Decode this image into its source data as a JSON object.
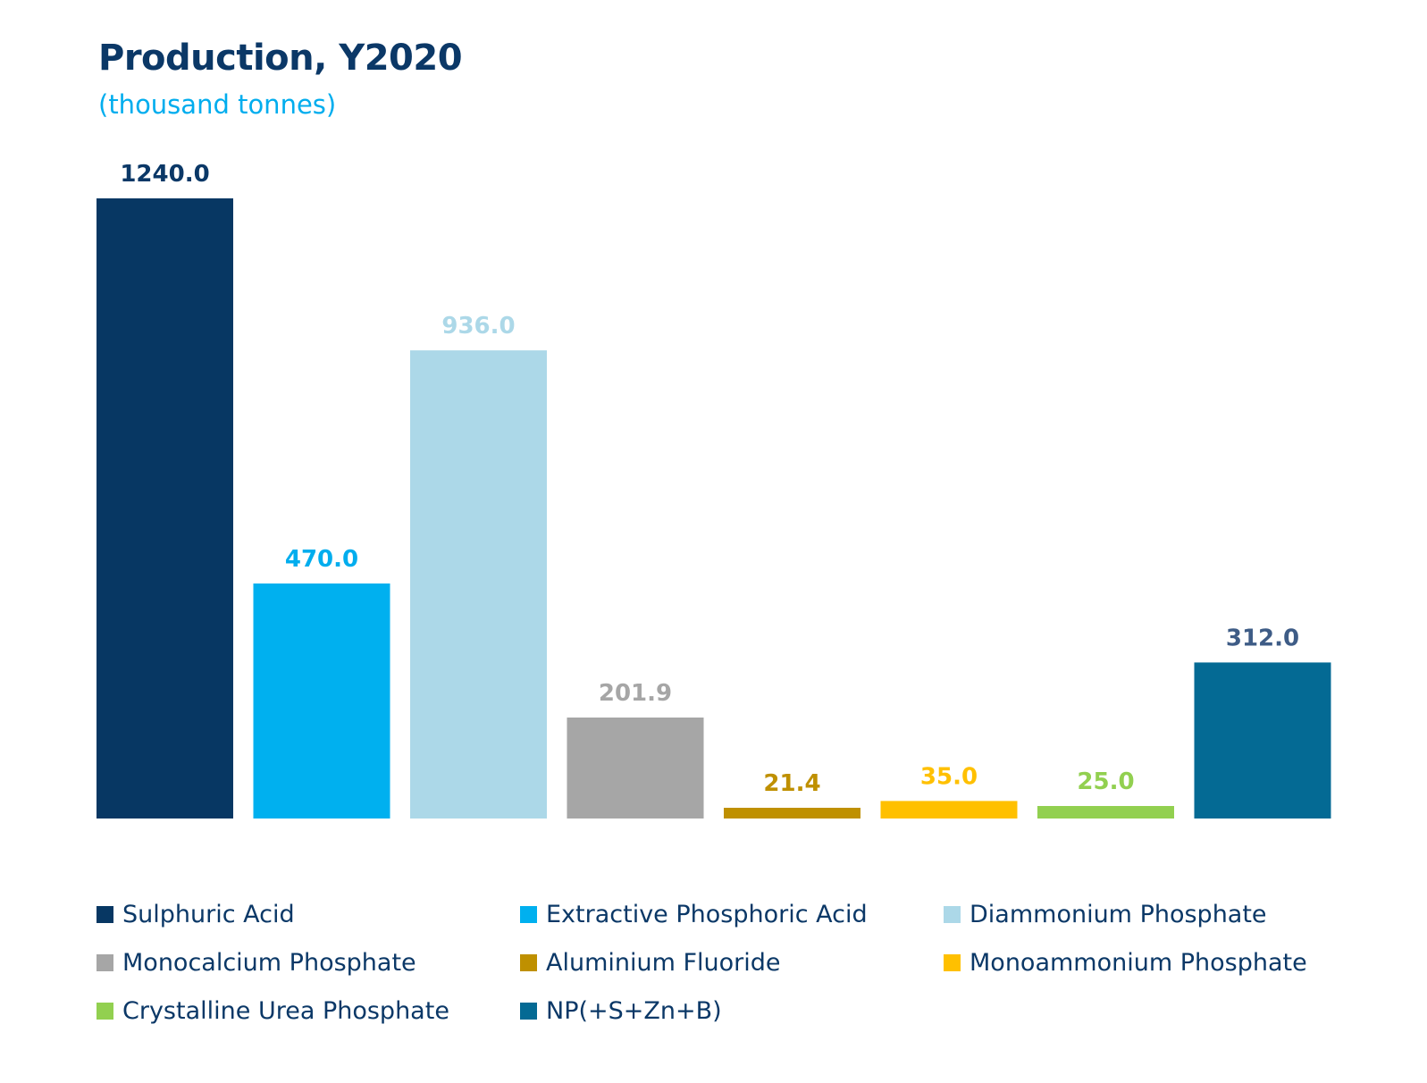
{
  "chart_data": {
    "type": "bar",
    "title": "Production, Y2020",
    "subtitle": "(thousand tonnes)",
    "categories": [
      "Sulphuric Acid",
      "Extractive Phosphoric Acid",
      "Diammonium Phosphate",
      "Monocalcium Phosphate",
      "Aluminium Fluoride",
      "Monoammonium Phosphate",
      "Crystalline Urea Phosphate",
      "NP(+S+Zn+B)"
    ],
    "values": [
      1240.0,
      470.0,
      936.0,
      201.9,
      21.4,
      35.0,
      25.0,
      312.0
    ],
    "value_labels": [
      "1240.0",
      "470.0",
      "936.0",
      "201.9",
      "21.4",
      "35.0",
      "25.0",
      "312.0"
    ],
    "colors": [
      "#073763",
      "#00b0ef",
      "#acd8e8",
      "#a6a6a6",
      "#bf9000",
      "#ffc000",
      "#92d050",
      "#046a94"
    ],
    "label_colors": [
      "#0b3867",
      "#00adee",
      "#acd8e8",
      "#a6a6a6",
      "#bf9000",
      "#ffc000",
      "#92d050",
      "#3e5c86"
    ],
    "ylim": [
      0,
      1240
    ],
    "grid": false,
    "legend_position": "bottom"
  }
}
